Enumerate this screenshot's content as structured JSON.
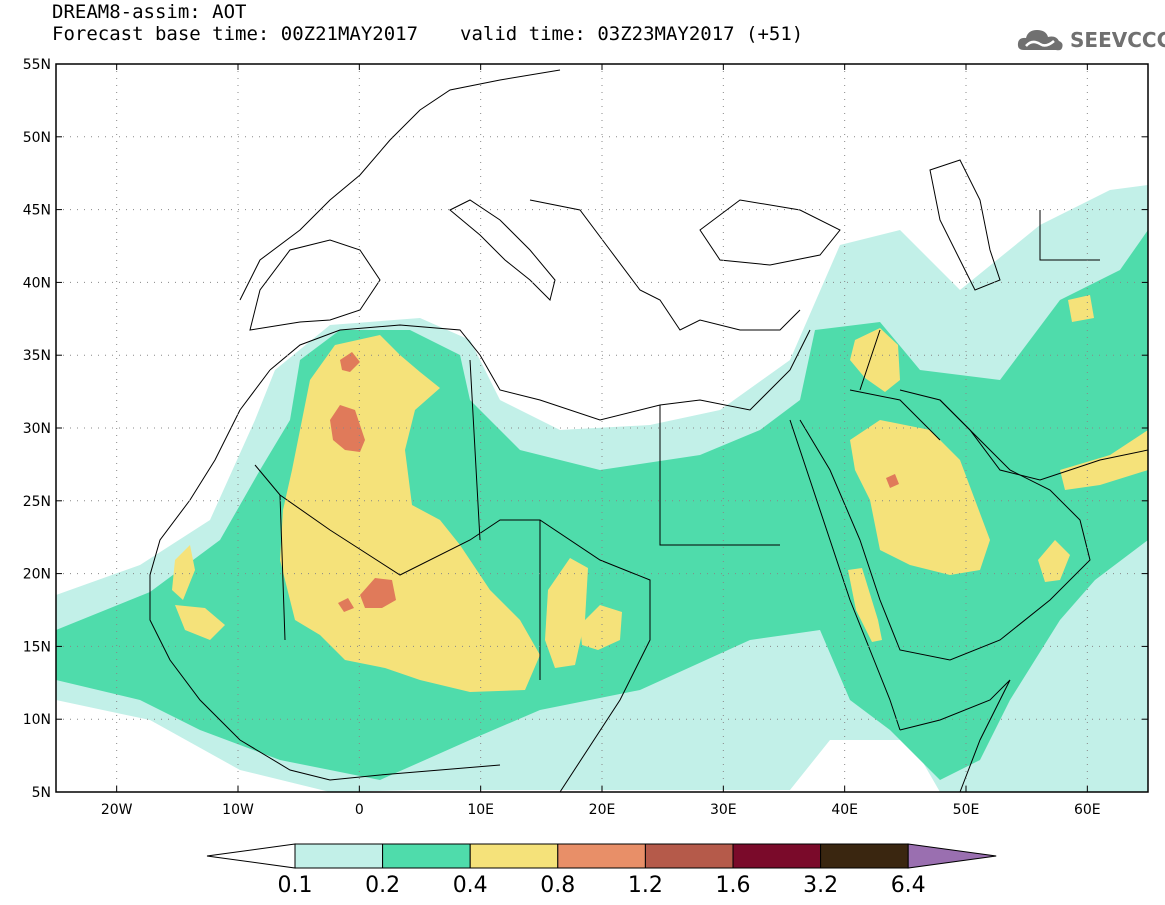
{
  "header": {
    "title": "DREAM8-assim: AOT",
    "base_time_label": "Forecast base time: 00Z21MAY2017",
    "valid_time_label": "valid time: 03Z23MAY2017 (+51)"
  },
  "logo": {
    "text": "SEEVCCC",
    "icon": "cloud-logo-icon"
  },
  "map": {
    "lon_range": [
      -25,
      65
    ],
    "lat_range": [
      5,
      55
    ],
    "lon_ticks": [
      {
        "value": -20,
        "label": "20W"
      },
      {
        "value": -10,
        "label": "10W"
      },
      {
        "value": 0,
        "label": "0"
      },
      {
        "value": 10,
        "label": "10E"
      },
      {
        "value": 20,
        "label": "20E"
      },
      {
        "value": 30,
        "label": "30E"
      },
      {
        "value": 40,
        "label": "40E"
      },
      {
        "value": 50,
        "label": "50E"
      },
      {
        "value": 60,
        "label": "60E"
      }
    ],
    "lat_ticks": [
      {
        "value": 55,
        "label": "55N"
      },
      {
        "value": 50,
        "label": "50N"
      },
      {
        "value": 45,
        "label": "45N"
      },
      {
        "value": 40,
        "label": "40N"
      },
      {
        "value": 35,
        "label": "35N"
      },
      {
        "value": 30,
        "label": "30N"
      },
      {
        "value": 25,
        "label": "25N"
      },
      {
        "value": 20,
        "label": "20N"
      },
      {
        "value": 15,
        "label": "15N"
      },
      {
        "value": 10,
        "label": "10N"
      },
      {
        "value": 5,
        "label": "5N"
      }
    ],
    "grid": true
  },
  "colorbar": {
    "under_color": "#ffffff",
    "over_color": "#9a6fb0",
    "bins": [
      {
        "color": "#c2f0e8"
      },
      {
        "color": "#4fdcab"
      },
      {
        "color": "#f5e27a"
      },
      {
        "color": "#e88f68"
      },
      {
        "color": "#b55a4a"
      },
      {
        "color": "#7a0a2a"
      },
      {
        "color": "#3a2610"
      }
    ],
    "labels": [
      "0.1",
      "0.2",
      "0.4",
      "0.8",
      "1.2",
      "1.6",
      "3.2",
      "6.4"
    ]
  }
}
